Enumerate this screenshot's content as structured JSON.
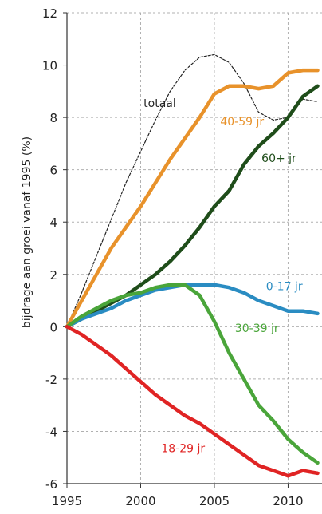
{
  "chart_data": {
    "type": "line",
    "title": "",
    "xlabel": "",
    "ylabel": "bijdrage aan groei vanaf 1995 (%)",
    "xlim": [
      1995,
      2012
    ],
    "ylim": [
      -6,
      12
    ],
    "x_ticks": [
      "1995",
      "2000",
      "2005",
      "2010"
    ],
    "y_ticks": [
      "-6",
      "-4",
      "-2",
      "0",
      "2",
      "4",
      "6",
      "8",
      "10",
      "12"
    ],
    "grid": true,
    "x": [
      1995,
      1996,
      1997,
      1998,
      1999,
      2000,
      2001,
      2002,
      2003,
      2004,
      2005,
      2006,
      2007,
      2008,
      2009,
      2010,
      2011,
      2012
    ],
    "series": [
      {
        "name": "totaal",
        "color": "#222222",
        "style": "dashed",
        "values": [
          0,
          1.3,
          2.7,
          4.1,
          5.5,
          6.7,
          7.9,
          9.0,
          9.8,
          10.3,
          10.4,
          10.1,
          9.3,
          8.2,
          7.9,
          8.0,
          8.7,
          8.6
        ]
      },
      {
        "name": "40-59 jr",
        "color": "#e8922b",
        "style": "solid",
        "values": [
          0,
          1.0,
          2.0,
          3.0,
          3.8,
          4.6,
          5.5,
          6.4,
          7.2,
          8.0,
          8.9,
          9.2,
          9.2,
          9.1,
          9.2,
          9.7,
          9.8,
          9.8
        ]
      },
      {
        "name": "60+ jr",
        "color": "#1f4d1a",
        "style": "solid",
        "values": [
          0,
          0.3,
          0.6,
          0.9,
          1.2,
          1.6,
          2.0,
          2.5,
          3.1,
          3.8,
          4.6,
          5.2,
          6.2,
          6.9,
          7.4,
          8.0,
          8.8,
          9.2
        ]
      },
      {
        "name": "0-17 jr",
        "color": "#2a8cc2",
        "style": "solid",
        "values": [
          0,
          0.3,
          0.5,
          0.7,
          1.0,
          1.2,
          1.4,
          1.5,
          1.6,
          1.6,
          1.6,
          1.5,
          1.3,
          1.0,
          0.8,
          0.6,
          0.6,
          0.5
        ]
      },
      {
        "name": "30-39 jr",
        "color": "#4aa53a",
        "style": "solid",
        "values": [
          0,
          0.4,
          0.7,
          1.0,
          1.2,
          1.3,
          1.5,
          1.6,
          1.6,
          1.2,
          0.2,
          -1.0,
          -2.0,
          -3.0,
          -3.6,
          -4.3,
          -4.8,
          -5.2
        ]
      },
      {
        "name": "18-29 jr",
        "color": "#e02424",
        "style": "solid",
        "values": [
          0,
          -0.3,
          -0.7,
          -1.1,
          -1.6,
          -2.1,
          -2.6,
          -3.0,
          -3.4,
          -3.7,
          -4.1,
          -4.5,
          -4.9,
          -5.3,
          -5.5,
          -5.7,
          -5.5,
          -5.6
        ]
      }
    ],
    "labels": [
      {
        "text": "totaal",
        "x": 2000.2,
        "y": 8.4,
        "color": "#222222"
      },
      {
        "text": "40-59 jr",
        "x": 2005.4,
        "y": 7.7,
        "color": "#e8922b"
      },
      {
        "text": "60+ jr",
        "x": 2008.2,
        "y": 6.3,
        "color": "#1f4d1a"
      },
      {
        "text": "0-17 jr",
        "x": 2008.5,
        "y": 1.4,
        "color": "#2a8cc2"
      },
      {
        "text": "30-39 jr",
        "x": 2006.4,
        "y": -0.2,
        "color": "#4aa53a"
      },
      {
        "text": "18-29 jr",
        "x": 2001.4,
        "y": -4.8,
        "color": "#e02424"
      }
    ]
  }
}
